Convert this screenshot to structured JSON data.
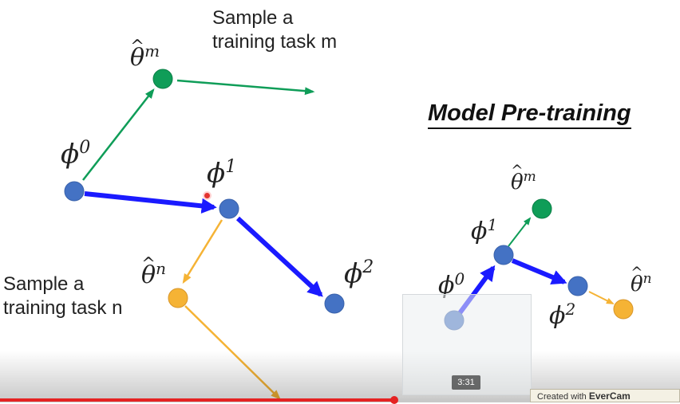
{
  "left_diagram": {
    "sample_task_m": [
      "Sample a",
      "training task m"
    ],
    "sample_task_n": [
      "Sample a",
      "training task n"
    ],
    "nodes": {
      "phi0": {
        "symbol": "ϕ",
        "sup": "0"
      },
      "phi1": {
        "symbol": "ϕ",
        "sup": "1"
      },
      "phi2": {
        "symbol": "ϕ",
        "sup": "2"
      },
      "theta_m": {
        "symbol": "θ",
        "sup": "m"
      },
      "theta_n": {
        "symbol": "θ",
        "sup": "n"
      }
    }
  },
  "right_diagram": {
    "title": "Model Pre-training",
    "nodes": {
      "phi0": {
        "symbol": "ϕ",
        "sup": "0"
      },
      "phi1": {
        "symbol": "ϕ",
        "sup": "1"
      },
      "phi2": {
        "symbol": "ϕ",
        "sup": "2"
      },
      "theta_m": {
        "symbol": "θ",
        "sup": "m"
      },
      "theta_n": {
        "symbol": "θ",
        "sup": "n"
      }
    }
  },
  "video": {
    "thumbnail_time": "3:31",
    "progress_fraction": 0.58
  },
  "watermark": {
    "prefix": "Created with ",
    "brand": "EverCam"
  },
  "colors": {
    "blue_node": "#4472c4",
    "blue_arrow": "#1a1aff",
    "green": "#0f9d58",
    "orange": "#f5b335",
    "progress": "#e52222"
  }
}
